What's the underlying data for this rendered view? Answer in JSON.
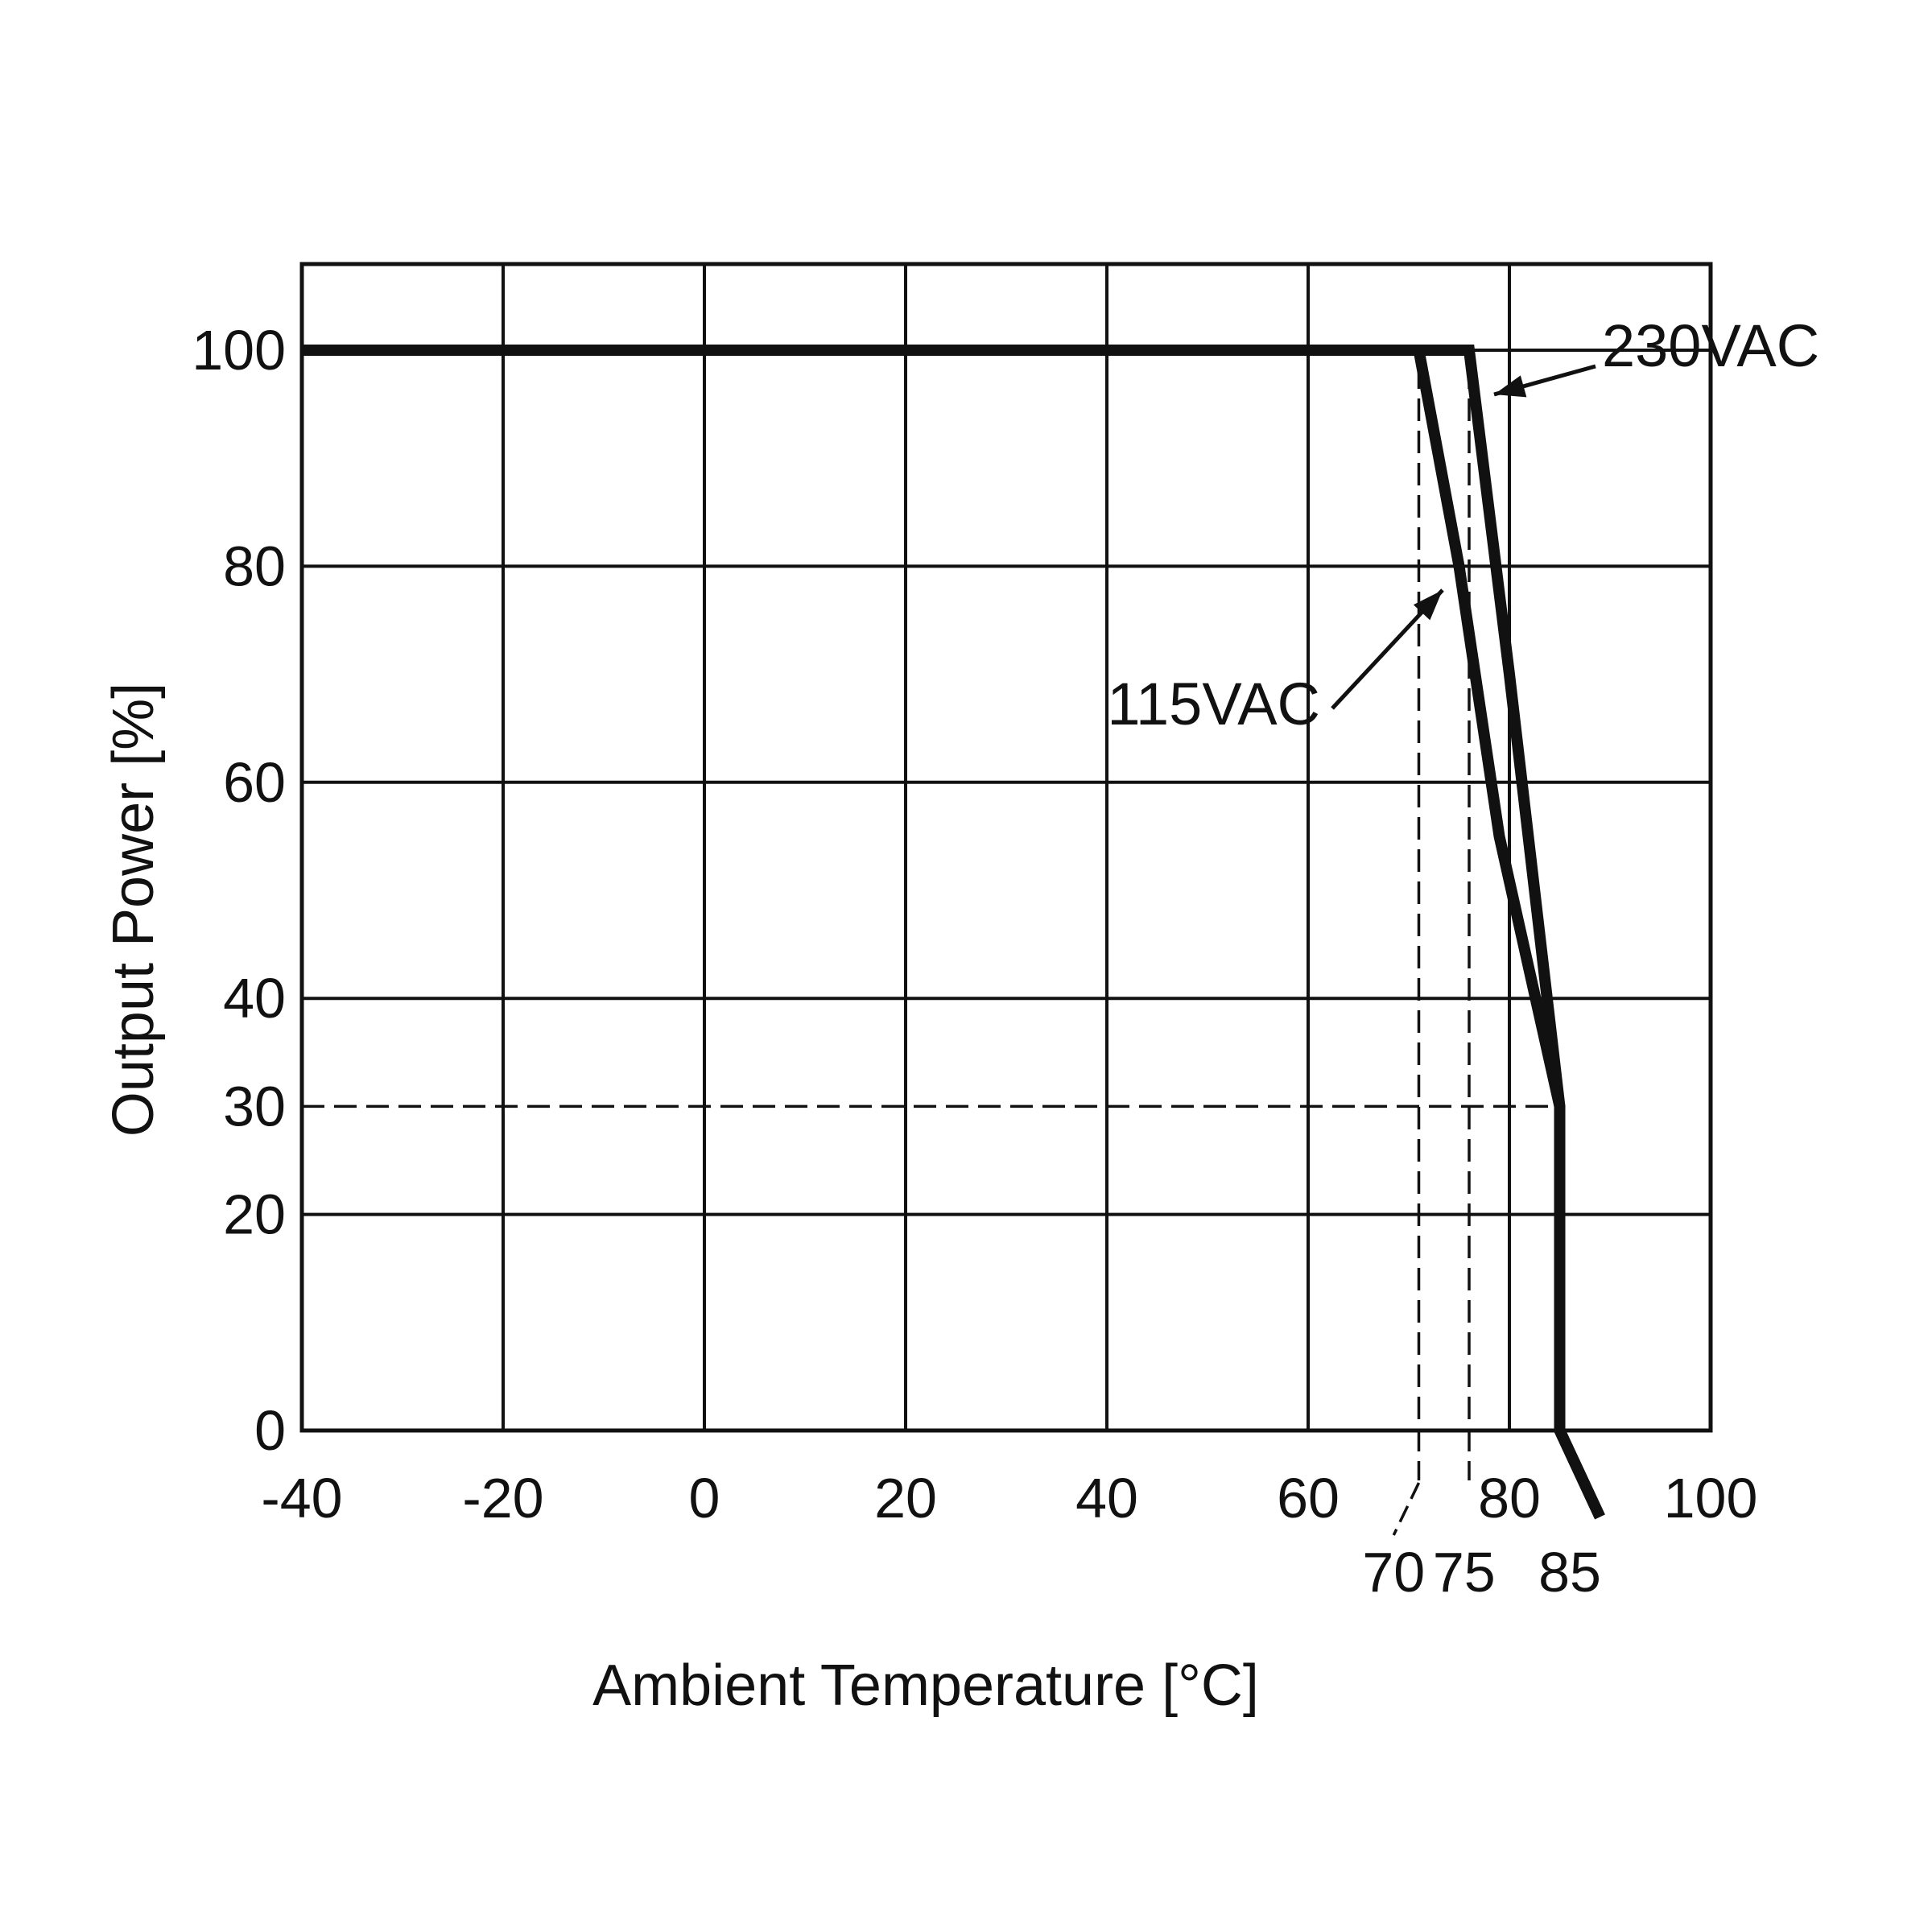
{
  "chart_data": {
    "type": "line",
    "title": "",
    "xlabel": "Ambient Temperature [°C]",
    "ylabel": "Output Power [%]",
    "xlim": [
      -40,
      100
    ],
    "ylim": [
      0,
      108
    ],
    "grid": true,
    "x_ticks": [
      -40,
      -20,
      0,
      20,
      40,
      60,
      80,
      100
    ],
    "x_ticks_extra": [
      70,
      75,
      85
    ],
    "y_ticks": [
      0,
      20,
      30,
      40,
      60,
      80,
      100
    ],
    "reference_lines": [
      {
        "axis": "x",
        "value": 71,
        "style": "dashed"
      },
      {
        "axis": "x",
        "value": 76,
        "style": "dashed"
      },
      {
        "axis": "y",
        "value": 30,
        "style": "dashed"
      }
    ],
    "series": [
      {
        "name": "115VAC",
        "x": [
          -40,
          71,
          75,
          79,
          85,
          85,
          89
        ],
        "y": [
          100,
          100,
          80,
          55,
          30,
          0,
          -8
        ]
      },
      {
        "name": "230VAC",
        "x": [
          -40,
          76,
          80,
          85,
          85,
          89
        ],
        "y": [
          100,
          100,
          70,
          30,
          0,
          -8
        ]
      }
    ],
    "series_colors": [
      "#111111",
      "#111111"
    ]
  }
}
